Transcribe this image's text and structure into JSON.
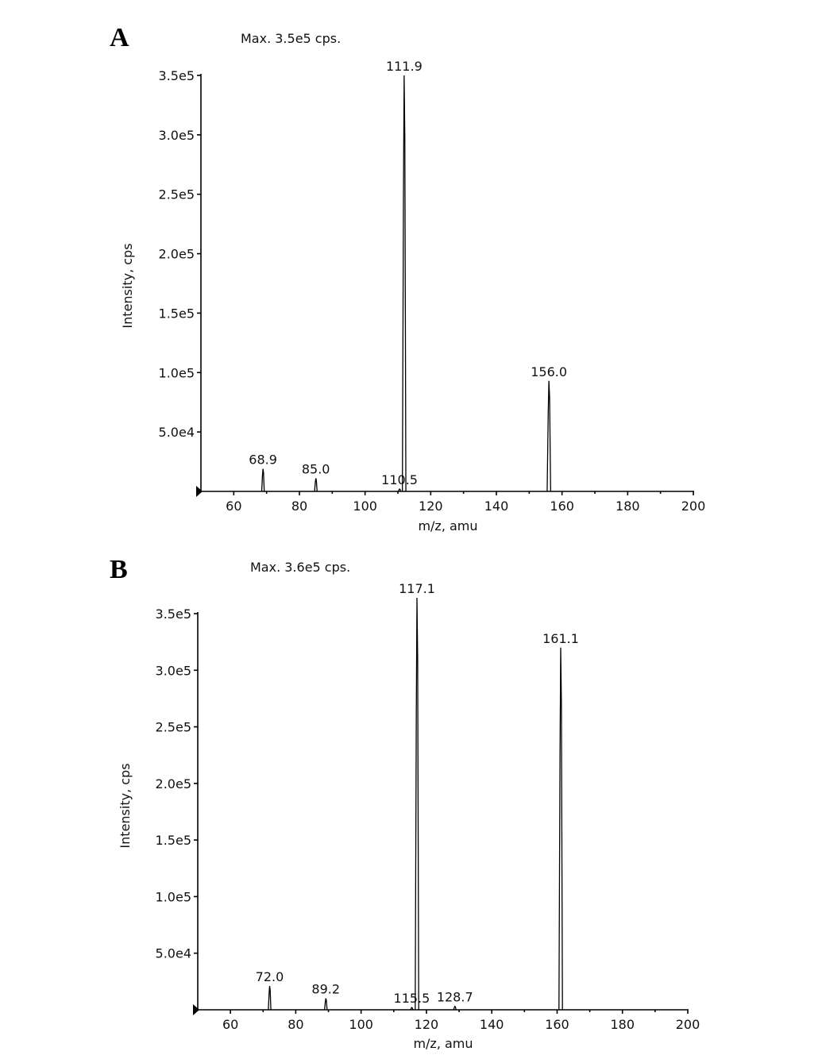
{
  "chart_data": [
    {
      "type": "bar",
      "panel_label": "A",
      "title": "Max. 3.5e5 cps.",
      "xlabel": "m/z, amu",
      "ylabel": "Intensity, cps",
      "xlim": [
        50,
        200
      ],
      "ylim": [
        0,
        350000
      ],
      "xticks": [
        "60",
        "80",
        "100",
        "120",
        "140",
        "160",
        "180",
        "200"
      ],
      "xtick_values": [
        60,
        80,
        100,
        120,
        140,
        160,
        180,
        200
      ],
      "yticks": [
        "5.0e4",
        "1.0e5",
        "1.5e5",
        "2.0e5",
        "2.5e5",
        "3.0e5",
        "3.5e5"
      ],
      "ytick_values": [
        50000,
        100000,
        150000,
        200000,
        250000,
        300000,
        350000
      ],
      "peaks": [
        {
          "mz": 68.9,
          "intensity": 19000,
          "label": "68.9"
        },
        {
          "mz": 85.0,
          "intensity": 11000,
          "label": "85.0"
        },
        {
          "mz": 110.5,
          "intensity": 2000,
          "label": "110.5"
        },
        {
          "mz": 111.9,
          "intensity": 350000,
          "label": "111.9"
        },
        {
          "mz": 156.0,
          "intensity": 93000,
          "label": "156.0"
        }
      ],
      "grid": false,
      "color": "#000000"
    },
    {
      "type": "bar",
      "panel_label": "B",
      "title": "Max. 3.6e5 cps.",
      "xlabel": "m/z, amu",
      "ylabel": "Intensity, cps",
      "xlim": [
        50,
        200
      ],
      "ylim": [
        0,
        350000
      ],
      "xticks": [
        "60",
        "80",
        "100",
        "120",
        "140",
        "160",
        "180",
        "200"
      ],
      "xtick_values": [
        60,
        80,
        100,
        120,
        140,
        160,
        180,
        200
      ],
      "yticks": [
        "5.0e4",
        "1.0e5",
        "1.5e5",
        "2.0e5",
        "2.5e5",
        "3.0e5",
        "3.5e5"
      ],
      "ytick_values": [
        50000,
        100000,
        150000,
        200000,
        250000,
        300000,
        350000
      ],
      "peaks": [
        {
          "mz": 72.0,
          "intensity": 21000,
          "label": "72.0"
        },
        {
          "mz": 89.2,
          "intensity": 10000,
          "label": "89.2"
        },
        {
          "mz": 115.5,
          "intensity": 2000,
          "label": "115.5"
        },
        {
          "mz": 117.1,
          "intensity": 364000,
          "label": "117.1"
        },
        {
          "mz": 128.7,
          "intensity": 3000,
          "label": "128.7"
        },
        {
          "mz": 161.1,
          "intensity": 320000,
          "label": "161.1"
        }
      ],
      "grid": false,
      "color": "#000000"
    }
  ]
}
